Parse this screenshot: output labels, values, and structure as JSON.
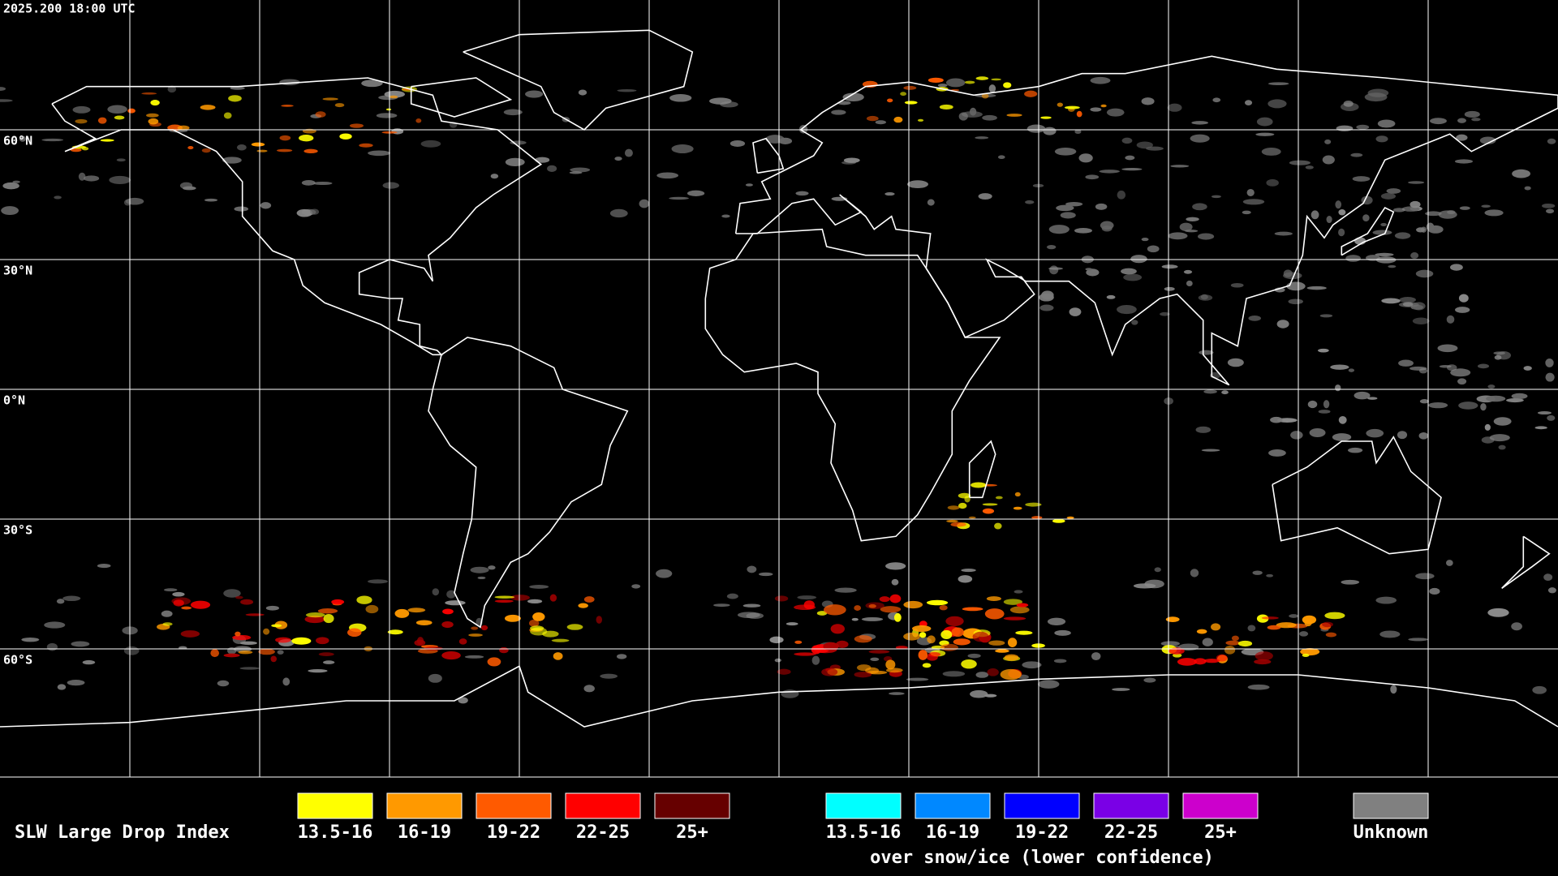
{
  "header": {
    "title": "2025.200 18:00 UTC"
  },
  "map": {
    "lat_labels": [
      "60°N",
      "30°N",
      "0°N",
      "30°S",
      "60°S"
    ]
  },
  "legend": {
    "title": "SLW Large Drop Index",
    "items": [
      {
        "label": "13.5-16",
        "color": "#ffff00"
      },
      {
        "label": "16-19",
        "color": "#ff9900"
      },
      {
        "label": "19-22",
        "color": "#ff5a00"
      },
      {
        "label": "22-25",
        "color": "#ff0000"
      },
      {
        "label": "25+",
        "color": "#660000"
      }
    ],
    "snow_items": [
      {
        "label": "13.5-16",
        "color": "#00ffff"
      },
      {
        "label": "16-19",
        "color": "#0088ff"
      },
      {
        "label": "19-22",
        "color": "#0000ff"
      },
      {
        "label": "22-25",
        "color": "#7a00e6"
      },
      {
        "label": "25+",
        "color": "#cc00cc"
      }
    ],
    "snow_caption": "over snow/ice (lower confidence)",
    "unknown": {
      "label": "Unknown",
      "color": "#808080"
    }
  }
}
